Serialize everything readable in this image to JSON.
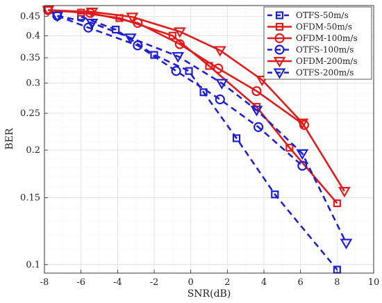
{
  "chart_data": {
    "type": "line",
    "title": "",
    "xlabel": "SNR(dB)",
    "ylabel": "BER",
    "xlim": [
      -8,
      10
    ],
    "ylim": [
      0.095,
      0.48
    ],
    "yscale": "log",
    "grid": true,
    "legend_position": "top-right",
    "x_ticks": [
      -8,
      -6,
      -4,
      -2,
      0,
      2,
      4,
      6,
      8,
      10
    ],
    "x_tick_labels": [
      "-8",
      "-6",
      "-4",
      "-2",
      "0",
      "2",
      "4",
      "6",
      "8",
      "10"
    ],
    "y_ticks": [
      0.1,
      0.15,
      0.2,
      0.25,
      0.3,
      0.35,
      0.4,
      0.45
    ],
    "y_tick_labels": [
      "0.1",
      "0.15",
      "0.2",
      "0.25",
      "0.3",
      "0.35",
      "0.4",
      "0.45"
    ],
    "series": [
      {
        "name": "OTFS-50m/s",
        "color": "#1f1fd2",
        "dash": "dashed",
        "marker": "square",
        "x": [
          -6,
          -4.1,
          -2,
          -0.1,
          0.7,
          2.5,
          4.6,
          8
        ],
        "y": [
          0.449,
          0.415,
          0.356,
          0.323,
          0.284,
          0.215,
          0.153,
          0.097
        ]
      },
      {
        "name": "OFDM-50m/s",
        "color": "#e01b1b",
        "dash": "solid",
        "marker": "square",
        "x": [
          -7.8,
          -6,
          -3.9,
          -1,
          1,
          3.6,
          5.4,
          8
        ],
        "y": [
          0.467,
          0.46,
          0.445,
          0.4,
          0.333,
          0.26,
          0.203,
          0.145
        ]
      },
      {
        "name": "OFDM-100m/s",
        "color": "#e01b1b",
        "dash": "solid",
        "marker": "circle",
        "x": [
          -7.8,
          -5.5,
          -2.9,
          -0.6,
          1.5,
          3.6,
          6.2
        ],
        "y": [
          0.467,
          0.459,
          0.432,
          0.38,
          0.328,
          0.286,
          0.233
        ]
      },
      {
        "name": "OTFS-100m/s",
        "color": "#1f1fd2",
        "dash": "dashed",
        "marker": "circle",
        "x": [
          -7.3,
          -5.6,
          -2.9,
          -0.8,
          1.6,
          3.7,
          6.1
        ],
        "y": [
          0.451,
          0.42,
          0.377,
          0.323,
          0.272,
          0.23,
          0.182
        ]
      },
      {
        "name": "OFDM-200m/s",
        "color": "#e01b1b",
        "dash": "solid",
        "marker": "triangle-down",
        "x": [
          -7.8,
          -5.4,
          -3.2,
          -0.6,
          1.6,
          3.9,
          6.1,
          8.4
        ],
        "y": [
          0.467,
          0.462,
          0.448,
          0.41,
          0.366,
          0.306,
          0.236,
          0.156
        ]
      },
      {
        "name": "OTFS-200m/s",
        "color": "#1f1fd2",
        "dash": "dashed",
        "marker": "triangle-down",
        "x": [
          -7.3,
          -5.4,
          -3.3,
          -0.7,
          1.7,
          3.6,
          6.1,
          8.5
        ],
        "y": [
          0.451,
          0.432,
          0.395,
          0.353,
          0.3,
          0.255,
          0.196,
          0.114
        ]
      }
    ]
  }
}
